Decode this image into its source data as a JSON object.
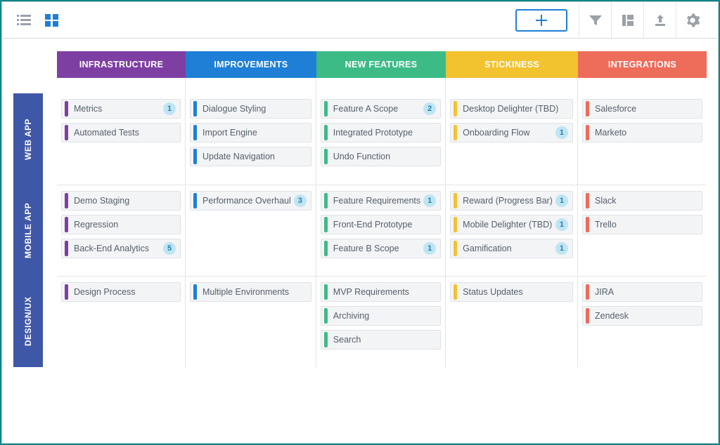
{
  "colors": {
    "app_border": "#0a8585",
    "row_label_bg": "#3f57a7",
    "badge_bg": "#bfe5f3",
    "badge_fg": "#2a7dab",
    "card_bg": "#f3f4f6",
    "card_border": "#dfe2e6",
    "grid_line": "#e1e4e8"
  },
  "columns": [
    {
      "label": "INFRASTRUCTURE",
      "color": "#7e3fa3"
    },
    {
      "label": "IMPROVEMENTS",
      "color": "#1f7fd6"
    },
    {
      "label": "NEW FEATURES",
      "color": "#3dbb87"
    },
    {
      "label": "STICKINESS",
      "color": "#f3c22f"
    },
    {
      "label": "INTEGRATIONS",
      "color": "#ee6c5a"
    }
  ],
  "rows": [
    {
      "label": "WEB APP",
      "cells": [
        [
          {
            "title": "Metrics",
            "badge": 1
          },
          {
            "title": "Automated Tests"
          }
        ],
        [
          {
            "title": "Dialogue Styling"
          },
          {
            "title": "Import Engine"
          },
          {
            "title": "Update Navigation"
          }
        ],
        [
          {
            "title": "Feature A Scope",
            "badge": 2
          },
          {
            "title": "Integrated Prototype"
          },
          {
            "title": "Undo Function"
          }
        ],
        [
          {
            "title": "Desktop Delighter (TBD)"
          },
          {
            "title": "Onboarding Flow",
            "badge": 1
          }
        ],
        [
          {
            "title": "Salesforce"
          },
          {
            "title": "Marketo"
          }
        ]
      ]
    },
    {
      "label": "MOBILE APP",
      "cells": [
        [
          {
            "title": "Demo Staging"
          },
          {
            "title": "Regression"
          },
          {
            "title": "Back-End Analytics",
            "badge": 5
          }
        ],
        [
          {
            "title": "Performance Overhaul",
            "badge": 3
          }
        ],
        [
          {
            "title": "Feature Requirements",
            "badge": 1
          },
          {
            "title": "Front-End Prototype"
          },
          {
            "title": "Feature B Scope",
            "badge": 1
          }
        ],
        [
          {
            "title": "Reward (Progress Bar)",
            "badge": 1
          },
          {
            "title": "Mobile Delighter (TBD)",
            "badge": 1
          },
          {
            "title": "Gamification",
            "badge": 1
          }
        ],
        [
          {
            "title": "Slack"
          },
          {
            "title": "Trello"
          }
        ]
      ]
    },
    {
      "label": "DESIGN/UX",
      "cells": [
        [
          {
            "title": "Design Process"
          }
        ],
        [
          {
            "title": "Multiple Environments"
          }
        ],
        [
          {
            "title": "MVP Requirements"
          },
          {
            "title": "Archiving"
          },
          {
            "title": "Search"
          }
        ],
        [
          {
            "title": "Status Updates"
          }
        ],
        [
          {
            "title": "JIRA"
          },
          {
            "title": "Zendesk"
          }
        ]
      ]
    }
  ]
}
